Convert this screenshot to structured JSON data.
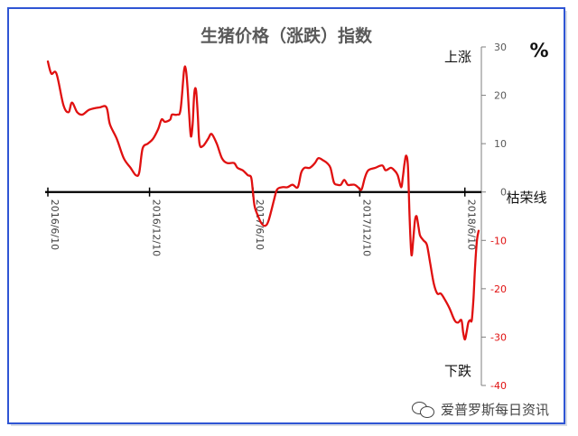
{
  "chart_data": {
    "type": "line",
    "title": "生猪价格（涨跌）指数",
    "unit": "%",
    "ylim": [
      -40,
      30
    ],
    "yticks": [
      30,
      20,
      10,
      0,
      -10,
      -20,
      -30,
      -40
    ],
    "x_tick_labels": [
      "2016/6/10",
      "2016/12/10",
      "2017/6/10",
      "2017/12/10",
      "2018/6/10"
    ],
    "annotations": {
      "up": "上涨",
      "down": "下跌",
      "boom_bust_line": "枯荣线"
    },
    "series": [
      {
        "color": "#e01010",
        "points": [
          [
            0,
            27
          ],
          [
            2,
            24.5
          ],
          [
            5,
            24.5
          ],
          [
            9,
            18
          ],
          [
            12,
            16.5
          ],
          [
            14,
            18.5
          ],
          [
            17,
            16.5
          ],
          [
            20,
            16
          ],
          [
            24,
            17
          ],
          [
            30,
            17.5
          ],
          [
            34,
            17.5
          ],
          [
            36,
            14
          ],
          [
            40,
            11
          ],
          [
            44,
            7
          ],
          [
            48,
            5
          ],
          [
            51,
            3.5
          ],
          [
            53,
            4
          ],
          [
            55,
            9
          ],
          [
            58,
            10
          ],
          [
            61,
            11
          ],
          [
            64,
            13
          ],
          [
            66,
            15
          ],
          [
            68,
            14.5
          ],
          [
            71,
            15
          ],
          [
            72,
            16
          ],
          [
            75,
            16
          ],
          [
            77,
            17
          ],
          [
            79,
            25
          ],
          [
            80,
            25.5
          ],
          [
            81,
            22
          ],
          [
            82,
            16
          ],
          [
            83,
            11.5
          ],
          [
            84,
            14
          ],
          [
            85,
            20.5
          ],
          [
            86,
            21
          ],
          [
            87,
            16
          ],
          [
            88,
            10
          ],
          [
            90,
            9.5
          ],
          [
            93,
            11
          ],
          [
            95,
            12
          ],
          [
            98,
            10
          ],
          [
            101,
            7
          ],
          [
            104,
            6
          ],
          [
            108,
            6
          ],
          [
            110,
            5
          ],
          [
            113,
            4.5
          ],
          [
            116,
            3.5
          ],
          [
            118,
            3
          ],
          [
            119,
            0
          ],
          [
            120,
            -3
          ],
          [
            122,
            -5
          ],
          [
            124,
            -6.5
          ],
          [
            126,
            -7
          ],
          [
            128,
            -6
          ],
          [
            131,
            -2
          ],
          [
            133,
            0.5
          ],
          [
            136,
            1
          ],
          [
            139,
            1
          ],
          [
            142,
            1.5
          ],
          [
            145,
            1
          ],
          [
            147,
            4
          ],
          [
            149,
            5
          ],
          [
            152,
            5
          ],
          [
            155,
            6
          ],
          [
            157,
            7
          ],
          [
            160,
            6.5
          ],
          [
            162,
            6
          ],
          [
            164,
            5
          ],
          [
            166,
            2
          ],
          [
            168,
            1.5
          ],
          [
            170,
            1.5
          ],
          [
            172,
            2.5
          ],
          [
            174,
            1.5
          ],
          [
            176,
            1.5
          ],
          [
            178,
            1.5
          ],
          [
            180,
            1
          ],
          [
            182,
            0.5
          ],
          [
            184,
            3
          ],
          [
            186,
            4.5
          ],
          [
            190,
            5
          ],
          [
            194,
            5.5
          ],
          [
            196,
            4.5
          ],
          [
            199,
            5
          ],
          [
            201,
            4.5
          ],
          [
            203,
            3.5
          ],
          [
            205,
            1
          ],
          [
            206,
            3
          ],
          [
            207,
            6
          ],
          [
            208,
            7.5
          ],
          [
            209,
            5
          ],
          [
            210,
            -6
          ],
          [
            211,
            -13
          ],
          [
            212,
            -10
          ],
          [
            213,
            -6
          ],
          [
            214,
            -5
          ],
          [
            215,
            -7
          ],
          [
            216,
            -9
          ],
          [
            218,
            -10
          ],
          [
            220,
            -11
          ],
          [
            222,
            -15
          ],
          [
            224,
            -19
          ],
          [
            226,
            -21
          ],
          [
            228,
            -21
          ],
          [
            230,
            -22
          ],
          [
            233,
            -24
          ],
          [
            236,
            -26.5
          ],
          [
            238,
            -27
          ],
          [
            240,
            -26.5
          ],
          [
            241,
            -29
          ],
          [
            242,
            -30.5
          ],
          [
            243,
            -29
          ],
          [
            244,
            -27
          ],
          [
            245,
            -26.5
          ],
          [
            246,
            -26.5
          ],
          [
            247,
            -22
          ],
          [
            248,
            -15
          ],
          [
            249,
            -10
          ],
          [
            250,
            -8
          ]
        ]
      }
    ],
    "x_tick_positions": [
      0,
      59,
      119,
      181,
      242
    ]
  },
  "watermark": {
    "text": "爱普罗斯每日资讯",
    "icon": "wechat-icon"
  }
}
